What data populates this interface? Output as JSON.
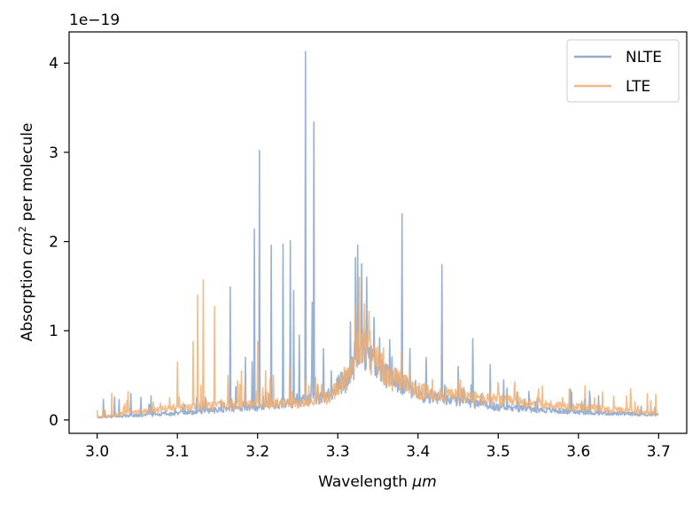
{
  "chart_data": {
    "type": "line",
    "title": "",
    "xlabel_text": "Wavelength ",
    "xlabel_unit": "μm",
    "ylabel_text": "Absorption ",
    "ylabel_unit": "cm",
    "ylabel_exp": "2",
    "ylabel_tail": " per molecule",
    "y_offset_text": "1e−19",
    "xlim": [
      2.965,
      3.735
    ],
    "ylim": [
      -0.15,
      4.35
    ],
    "xticks": [
      3.0,
      3.1,
      3.2,
      3.3,
      3.4,
      3.5,
      3.6,
      3.7
    ],
    "xtick_labels": [
      "3.0",
      "3.1",
      "3.2",
      "3.3",
      "3.4",
      "3.5",
      "3.6",
      "3.7"
    ],
    "yticks": [
      0,
      1,
      2,
      3,
      4
    ],
    "ytick_labels": [
      "0",
      "1",
      "2",
      "3",
      "4"
    ],
    "legend_position": "top-right",
    "series": [
      {
        "name": "NLTE",
        "color": "#7f9fc8",
        "baseline": [
          [
            3.0,
            0.02
          ],
          [
            3.1,
            0.05
          ],
          [
            3.2,
            0.1
          ],
          [
            3.28,
            0.17
          ],
          [
            3.31,
            0.3
          ],
          [
            3.33,
            0.55
          ],
          [
            3.36,
            0.35
          ],
          [
            3.4,
            0.2
          ],
          [
            3.5,
            0.1
          ],
          [
            3.6,
            0.06
          ],
          [
            3.7,
            0.04
          ]
        ],
        "peaks": [
          [
            3.166,
            1.49
          ],
          [
            3.185,
            0.7
          ],
          [
            3.193,
            0.65
          ],
          [
            3.196,
            2.14
          ],
          [
            3.202,
            3.02
          ],
          [
            3.217,
            1.96
          ],
          [
            3.232,
            1.97
          ],
          [
            3.241,
            2.01
          ],
          [
            3.245,
            1.45
          ],
          [
            3.252,
            0.95
          ],
          [
            3.26,
            4.13
          ],
          [
            3.268,
            1.32
          ],
          [
            3.27,
            3.34
          ],
          [
            3.282,
            0.8
          ],
          [
            3.292,
            0.55
          ],
          [
            3.308,
            0.5
          ],
          [
            3.316,
            1.1
          ],
          [
            3.322,
            1.82
          ],
          [
            3.325,
            1.96
          ],
          [
            3.33,
            1.75
          ],
          [
            3.336,
            1.6
          ],
          [
            3.345,
            1.15
          ],
          [
            3.365,
            0.9
          ],
          [
            3.38,
            2.31
          ],
          [
            3.39,
            0.8
          ],
          [
            3.41,
            0.7
          ],
          [
            3.43,
            1.74
          ],
          [
            3.45,
            0.6
          ],
          [
            3.468,
            0.91
          ],
          [
            3.49,
            0.62
          ],
          [
            3.507,
            0.45
          ],
          [
            3.538,
            0.32
          ]
        ]
      },
      {
        "name": "LTE",
        "color": "#f0ac6e",
        "baseline": [
          [
            3.0,
            0.02
          ],
          [
            3.05,
            0.06
          ],
          [
            3.1,
            0.1
          ],
          [
            3.2,
            0.12
          ],
          [
            3.28,
            0.14
          ],
          [
            3.31,
            0.3
          ],
          [
            3.33,
            0.6
          ],
          [
            3.36,
            0.35
          ],
          [
            3.4,
            0.22
          ],
          [
            3.5,
            0.15
          ],
          [
            3.6,
            0.1
          ],
          [
            3.7,
            0.05
          ]
        ],
        "peaks": [
          [
            3.034,
            0.18
          ],
          [
            3.07,
            0.2
          ],
          [
            3.09,
            0.25
          ],
          [
            3.1,
            0.65
          ],
          [
            3.12,
            0.88
          ],
          [
            3.125,
            1.4
          ],
          [
            3.132,
            1.57
          ],
          [
            3.146,
            1.27
          ],
          [
            3.163,
            0.5
          ],
          [
            3.18,
            0.55
          ],
          [
            3.2,
            0.88
          ],
          [
            3.21,
            0.55
          ],
          [
            3.22,
            0.5
          ],
          [
            3.24,
            0.6
          ],
          [
            3.26,
            0.45
          ],
          [
            3.28,
            0.4
          ],
          [
            3.322,
            1.3
          ],
          [
            3.327,
            1.6
          ],
          [
            3.333,
            1.3
          ],
          [
            3.34,
            1.0
          ],
          [
            3.355,
            0.75
          ],
          [
            3.39,
            0.55
          ],
          [
            3.45,
            0.45
          ],
          [
            3.5,
            0.42
          ],
          [
            3.52,
            0.38
          ],
          [
            3.55,
            0.35
          ],
          [
            3.58,
            0.25
          ],
          [
            3.62,
            0.25
          ],
          [
            3.665,
            0.35
          ],
          [
            3.69,
            0.22
          ]
        ]
      }
    ]
  }
}
